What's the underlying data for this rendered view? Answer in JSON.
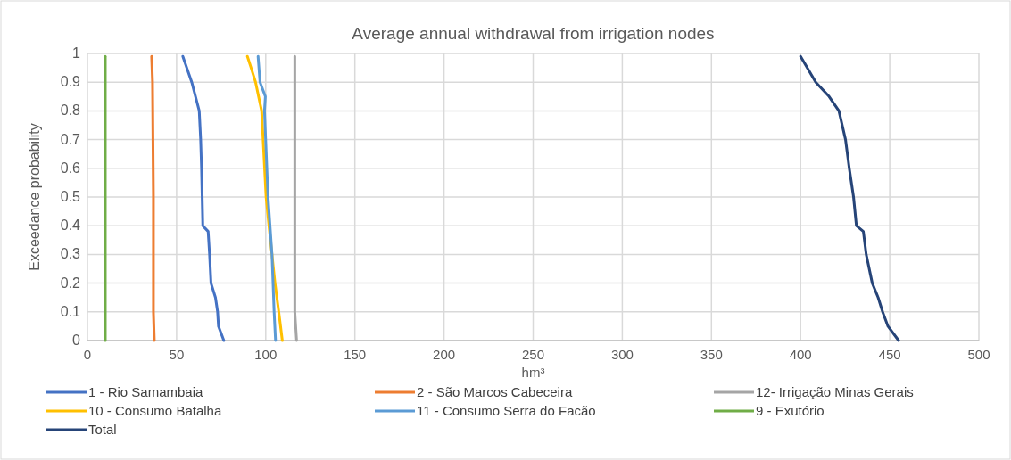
{
  "chart_data": {
    "type": "line",
    "title": "Average annual withdrawal from irrigation nodes",
    "xlabel": "hm³",
    "ylabel": "Exceedance probability",
    "xlim": [
      0,
      500
    ],
    "xticks": [
      0,
      50,
      100,
      150,
      200,
      250,
      300,
      350,
      400,
      450,
      500
    ],
    "ylim": [
      0,
      1
    ],
    "yticks": [
      0,
      0.1,
      0.2,
      0.3,
      0.4,
      0.5,
      0.6,
      0.7,
      0.8,
      0.9,
      1
    ],
    "grid": true,
    "legend": "bottom",
    "marker": "none",
    "line_style": "solid",
    "series": [
      {
        "name": "1 - Rio Samambaia",
        "color": "#4472c4",
        "x": [
          53.5,
          58.5,
          62.7,
          63.5,
          64,
          64.7,
          67.7,
          68.5,
          69.3,
          71.8,
          73,
          73.5,
          76.5
        ],
        "values": [
          0.99,
          0.9,
          0.8,
          0.7,
          0.6,
          0.4,
          0.38,
          0.3,
          0.2,
          0.15,
          0.1,
          0.05,
          0
        ]
      },
      {
        "name": "2 - São Marcos Cabeceira",
        "color": "#ed7d31",
        "x": [
          36,
          36.5,
          37,
          37,
          37.5
        ],
        "values": [
          0.99,
          0.9,
          0.5,
          0.1,
          0
        ]
      },
      {
        "name": "12- Irrigação Minas Gerais",
        "color": "#a5a5a5",
        "x": [
          116.3,
          116.3,
          116.3,
          117.3
        ],
        "values": [
          0.99,
          0.5,
          0.1,
          0
        ]
      },
      {
        "name": "10 - Consumo Batalha",
        "color": "#ffc000",
        "x": [
          89.7,
          91.8,
          94.3,
          97.7,
          100.2,
          101.8,
          105.2,
          107.3,
          109.3
        ],
        "values": [
          0.99,
          0.95,
          0.9,
          0.8,
          0.5,
          0.4,
          0.2,
          0.1,
          0
        ]
      },
      {
        "name": "11 - Consumo Serra do Facão",
        "color": "#5b9bd5",
        "x": [
          95.7,
          96.8,
          99.8,
          99.3,
          101.3,
          103.5,
          104.7,
          105.5
        ],
        "values": [
          0.99,
          0.9,
          0.85,
          0.8,
          0.5,
          0.3,
          0.1,
          0
        ]
      },
      {
        "name": "9 - Exutório",
        "color": "#70ad47",
        "x": [
          10,
          10,
          10
        ],
        "values": [
          0.99,
          0.5,
          0
        ]
      },
      {
        "name": "Total",
        "color": "#264478",
        "x": [
          400,
          408.5,
          416,
          421.5,
          425.2,
          427.3,
          429.7,
          431.3,
          435.2,
          436.8,
          440.2,
          443.5,
          446,
          449,
          455
        ],
        "values": [
          0.99,
          0.9,
          0.85,
          0.8,
          0.7,
          0.6,
          0.5,
          0.4,
          0.38,
          0.3,
          0.2,
          0.15,
          0.1,
          0.05,
          0
        ]
      }
    ]
  }
}
